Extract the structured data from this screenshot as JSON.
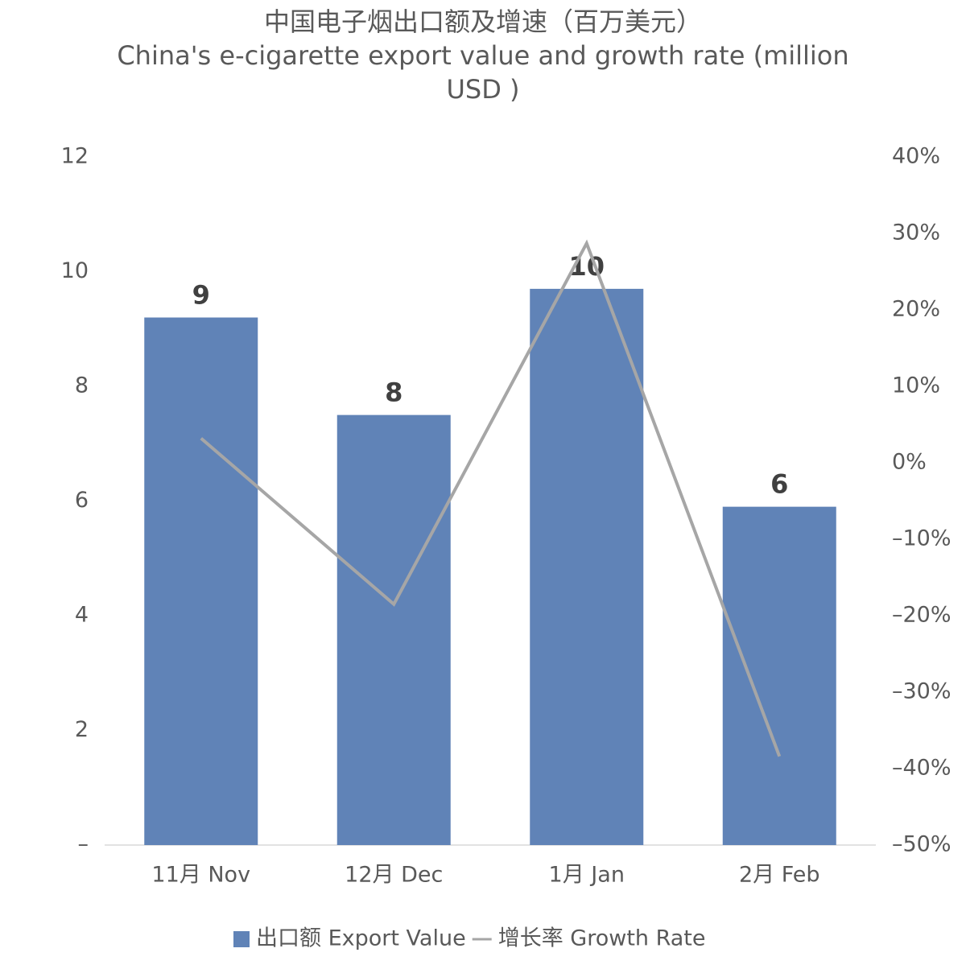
{
  "chart_data": {
    "type": "bar-line",
    "title": "中国电子烟出口额及增速（百万美元）",
    "subtitle": "China's e-cigarette export value and growth rate (million USD )",
    "categories": [
      "11月 Nov",
      "12月 Dec",
      "1月 Jan",
      "2月 Feb"
    ],
    "series": [
      {
        "name": "出口额 Export Value",
        "type": "bar",
        "color": "#6083b7",
        "values": [
          9.2,
          7.5,
          9.7,
          5.9
        ],
        "value_labels": [
          "9",
          "8",
          "10",
          "6"
        ]
      },
      {
        "name": "增长率 Growth Rate",
        "type": "line",
        "axis": "y2",
        "color": "#a6a6a6",
        "values": [
          3.2,
          -18.5,
          28.7,
          -38.4
        ]
      }
    ],
    "ylim": [
      0,
      12
    ],
    "yticks": [
      {
        "value": 0,
        "label": "–"
      },
      2,
      4,
      6,
      8,
      10,
      12
    ],
    "y2lim": [
      -50,
      40
    ],
    "y2ticks": [
      {
        "value": -50,
        "label": "–50%"
      },
      {
        "value": -40,
        "label": "–40%"
      },
      {
        "value": -30,
        "label": "–30%"
      },
      {
        "value": -20,
        "label": "–20%"
      },
      {
        "value": -10,
        "label": "–10%"
      },
      {
        "value": 0,
        "label": "0%"
      },
      {
        "value": 10,
        "label": "10%"
      },
      {
        "value": 20,
        "label": "20%"
      },
      {
        "value": 30,
        "label": "30%"
      },
      {
        "value": 40,
        "label": "40%"
      }
    ],
    "grid": false,
    "legend": "bottom"
  }
}
